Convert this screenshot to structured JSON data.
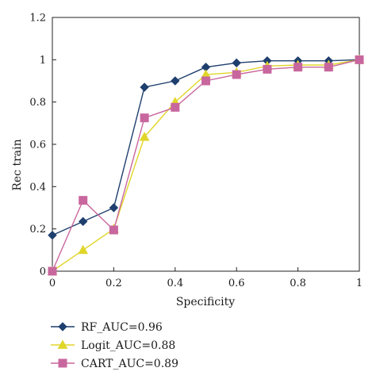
{
  "chart_data": {
    "type": "line",
    "xlabel": "Specificity",
    "ylabel": "Rec train",
    "xlim": [
      0,
      1
    ],
    "ylim": [
      0,
      1.2
    ],
    "x_ticks": [
      "0",
      "0.2",
      "0.4",
      "0.6",
      "0.8",
      "1"
    ],
    "y_ticks": [
      "0",
      "0.2",
      "0.4",
      "0.6",
      "0.8",
      "1",
      "1.2"
    ],
    "grid": false,
    "legend_position": "bottom-left, below plot",
    "series": [
      {
        "name": "RF_AUC=0.96",
        "color": "#1f3f6e",
        "marker": "diamond",
        "x": [
          0,
          0.1,
          0.2,
          0.3,
          0.4,
          0.5,
          0.6,
          0.7,
          0.8,
          0.9,
          1
        ],
        "y": [
          0.17,
          0.235,
          0.3,
          0.87,
          0.9,
          0.965,
          0.985,
          0.995,
          0.995,
          0.995,
          1.0
        ]
      },
      {
        "name": "Logit_AUC=0.88",
        "color": "#e0d62a",
        "marker": "triangle",
        "x": [
          0,
          0.1,
          0.2,
          0.3,
          0.4,
          0.5,
          0.6,
          0.7,
          0.8,
          0.9,
          1
        ],
        "y": [
          0.0,
          0.1,
          0.2,
          0.635,
          0.8,
          0.93,
          0.94,
          0.97,
          0.975,
          0.975,
          1.0
        ]
      },
      {
        "name": "CART_AUC=0.89",
        "color": "#c8679e",
        "marker": "square",
        "x": [
          0,
          0.1,
          0.2,
          0.3,
          0.4,
          0.5,
          0.6,
          0.7,
          0.8,
          0.9,
          1
        ],
        "y": [
          0.0,
          0.335,
          0.195,
          0.725,
          0.775,
          0.9,
          0.93,
          0.955,
          0.965,
          0.965,
          1.0
        ]
      }
    ]
  }
}
